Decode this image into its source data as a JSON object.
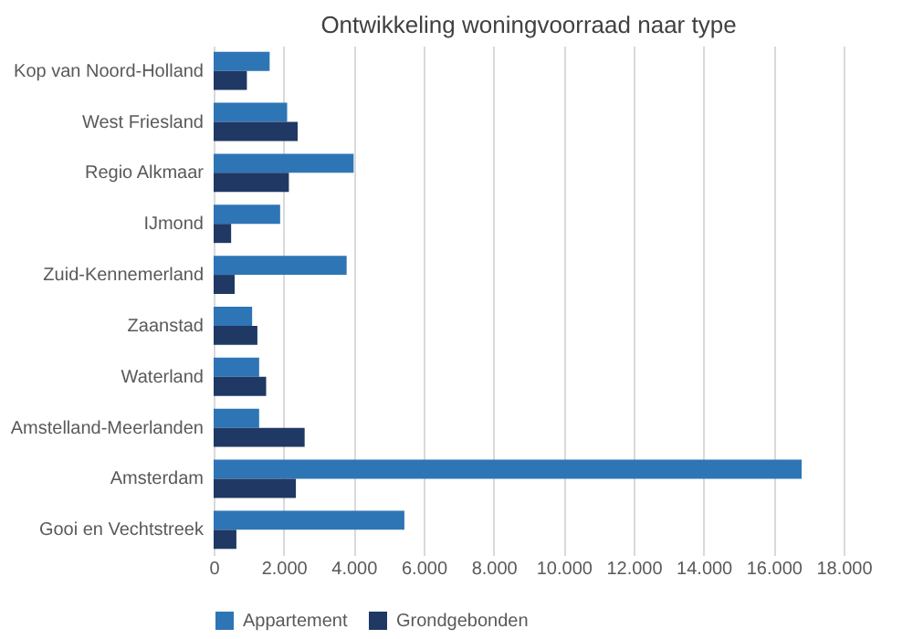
{
  "chart_data": {
    "type": "bar",
    "orientation": "horizontal",
    "title": "Ontwikkeling woningvoorraad naar type",
    "categories": [
      "Kop van Noord-Holland",
      "West Friesland",
      "Regio Alkmaar",
      "IJmond",
      "Zuid-Kennemerland",
      "Zaanstad",
      "Waterland",
      "Amstelland-Meerlanden",
      "Amsterdam",
      "Gooi en Vechtstreek"
    ],
    "series": [
      {
        "name": "Appartement",
        "color": "#2e75b6",
        "values": [
          1600,
          2100,
          4000,
          1900,
          3800,
          1100,
          1300,
          1300,
          16800,
          5450
        ]
      },
      {
        "name": "Grondgebonden",
        "color": "#1f3864",
        "values": [
          950,
          2400,
          2150,
          500,
          600,
          1250,
          1500,
          2600,
          2350,
          650
        ]
      }
    ],
    "xlim": [
      0,
      18000
    ],
    "xticks": [
      0,
      {
        "value": 2000,
        "label": "2.000"
      },
      {
        "value": 4000,
        "label": "4.000"
      },
      {
        "value": 6000,
        "label": "6.000"
      },
      {
        "value": 8000,
        "label": "8.000"
      },
      {
        "value": 10000,
        "label": "10.000"
      },
      {
        "value": 12000,
        "label": "12.000"
      },
      {
        "value": 14000,
        "label": "14.000"
      },
      {
        "value": 16000,
        "label": "16.000"
      },
      {
        "value": 18000,
        "label": "18.000"
      }
    ],
    "grid": "x",
    "legend": "bottom"
  }
}
